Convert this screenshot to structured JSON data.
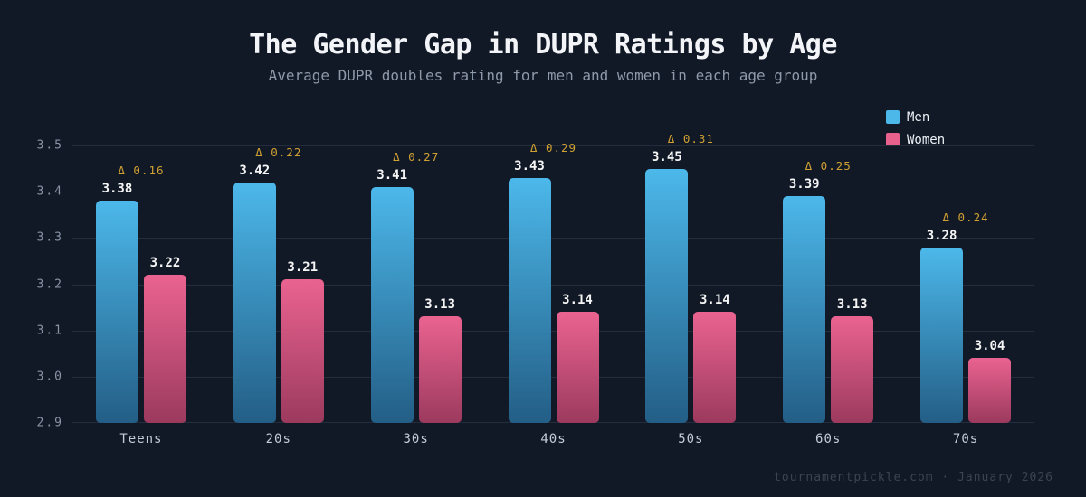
{
  "header": {
    "title": "The Gender Gap in DUPR Ratings by Age",
    "subtitle": "Average DUPR doubles rating for men and women in each age group"
  },
  "legend": [
    {
      "label": "Men",
      "color": "#4cb8ea"
    },
    {
      "label": "Women",
      "color": "#e8618c"
    }
  ],
  "footer": {
    "credit": "tournamentpickle.com · January 2026"
  },
  "chart_data": {
    "type": "bar",
    "title": "The Gender Gap in DUPR Ratings by Age",
    "subtitle": "Average DUPR doubles rating for men and women in each age group",
    "categories": [
      "Teens",
      "20s",
      "30s",
      "40s",
      "50s",
      "60s",
      "70s"
    ],
    "series": [
      {
        "name": "Men",
        "values": [
          3.38,
          3.42,
          3.41,
          3.43,
          3.45,
          3.39,
          3.28
        ],
        "color_top": "#4cb8ea",
        "color_bottom": "#235e86"
      },
      {
        "name": "Women",
        "values": [
          3.22,
          3.21,
          3.13,
          3.14,
          3.14,
          3.13,
          3.04
        ],
        "color_top": "#ea6390",
        "color_bottom": "#9c3a5e"
      }
    ],
    "delta_labels": [
      "Δ 0.16",
      "Δ 0.22",
      "Δ 0.27",
      "Δ 0.29",
      "Δ 0.31",
      "Δ 0.25",
      "Δ 0.24"
    ],
    "delta_color": "#cfa032",
    "yticks": [
      2.9,
      3.0,
      3.1,
      3.2,
      3.3,
      3.4,
      3.5
    ],
    "ylim": [
      2.9,
      3.5
    ],
    "grid": true,
    "legend_position": "top-right",
    "xlabel": "",
    "ylabel": ""
  }
}
